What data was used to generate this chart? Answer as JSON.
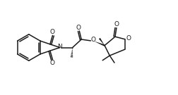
{
  "background_color": "#ffffff",
  "line_color": "#1a1a1a",
  "line_width": 1.1,
  "figsize": [
    2.52,
    1.35
  ],
  "dpi": 100,
  "xlim": [
    0,
    10.5
  ],
  "ylim": [
    0,
    5.6
  ]
}
